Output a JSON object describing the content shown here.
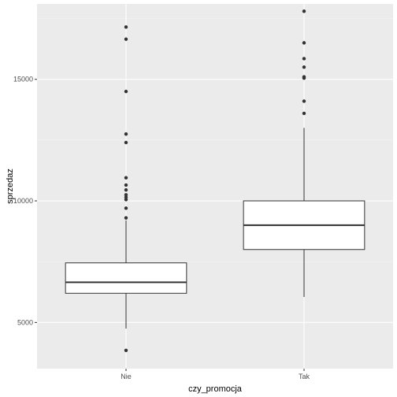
{
  "chart_data": {
    "type": "boxplot",
    "title": "",
    "xlabel": "czy_promocja",
    "ylabel": "sprzedaz",
    "ylim": [
      3100,
      18100
    ],
    "y_ticks": [
      5000,
      10000,
      15000
    ],
    "y_tick_labels": [
      "5000",
      "10000",
      "15000"
    ],
    "categories": [
      "Nie",
      "Tak"
    ],
    "grid": true,
    "legend": "none",
    "boxes": [
      {
        "category": "Nie",
        "whisker_low": 4750,
        "q1": 6200,
        "median": 6650,
        "q3": 7450,
        "whisker_high": 9200,
        "outliers": [
          3850,
          9300,
          9700,
          10050,
          10150,
          10250,
          10450,
          10650,
          10950,
          12400,
          12750,
          14500,
          16650,
          17150
        ]
      },
      {
        "category": "Tak",
        "whisker_low": 6050,
        "q1": 8000,
        "median": 9000,
        "q3": 10000,
        "whisker_high": 13000,
        "outliers": [
          13600,
          14100,
          15050,
          15100,
          15500,
          15850,
          16500,
          17800
        ]
      }
    ]
  },
  "colors": {
    "panel_background": "#ebebeb",
    "grid_major": "#ffffff",
    "grid_minor": "#f4f4f4",
    "box_fill": "#ffffff",
    "box_line": "#333333",
    "outlier": "#333333"
  }
}
